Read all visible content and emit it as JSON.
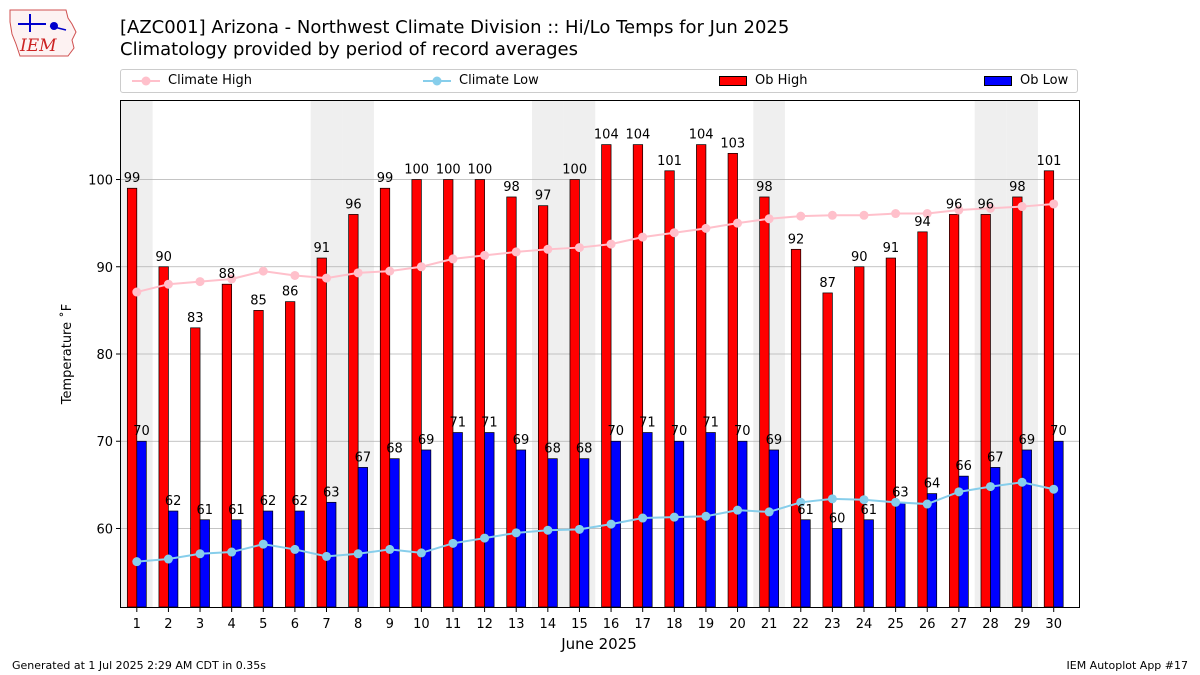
{
  "logo_text": "IEM",
  "title_line1": "[AZC001] Arizona - Northwest Climate Division :: Hi/Lo Temps for Jun 2025",
  "title_line2": "Climatology provided by period of record averages",
  "footer_left": "Generated at 1 Jul 2025 2:29 AM CDT in 0.35s",
  "footer_right": "IEM Autoplot App #17",
  "colors": {
    "ob_high": "#ff0000",
    "ob_low": "#0000ff",
    "climate_high": "#ffc0cb",
    "climate_low": "#87ceeb",
    "weekend_band": "#efefef",
    "grid": "#b0b0b0"
  },
  "chart_data": {
    "type": "bar",
    "xlabel": "June 2025",
    "ylabel": "Temperature ˚F",
    "ylim": [
      51,
      109
    ],
    "yticks": [
      60,
      70,
      80,
      90,
      100
    ],
    "grid": "horizontal",
    "legend_position": "top",
    "categories": [
      "1",
      "2",
      "3",
      "4",
      "5",
      "6",
      "7",
      "8",
      "9",
      "10",
      "11",
      "12",
      "13",
      "14",
      "15",
      "16",
      "17",
      "18",
      "19",
      "20",
      "21",
      "22",
      "23",
      "24",
      "25",
      "26",
      "27",
      "28",
      "29",
      "30"
    ],
    "weekend_days": [
      1,
      7,
      8,
      14,
      15,
      21,
      28,
      29
    ],
    "series": [
      {
        "name": "Climate High",
        "kind": "line",
        "values": [
          87.1,
          88.0,
          88.3,
          88.6,
          89.5,
          89.0,
          88.7,
          89.3,
          89.5,
          90.0,
          90.9,
          91.3,
          91.7,
          92.0,
          92.2,
          92.6,
          93.4,
          93.9,
          94.4,
          95.0,
          95.5,
          95.8,
          95.9,
          95.9,
          96.1,
          96.1,
          96.5,
          96.7,
          96.9,
          97.2
        ]
      },
      {
        "name": "Climate Low",
        "kind": "line",
        "values": [
          56.2,
          56.5,
          57.1,
          57.3,
          58.2,
          57.6,
          56.8,
          57.1,
          57.6,
          57.2,
          58.3,
          58.9,
          59.5,
          59.8,
          59.9,
          60.5,
          61.2,
          61.3,
          61.4,
          62.1,
          61.9,
          63.0,
          63.4,
          63.3,
          63.0,
          62.8,
          64.2,
          64.8,
          65.3,
          64.5
        ]
      },
      {
        "name": "Ob High",
        "kind": "bar",
        "values": [
          99,
          90,
          83,
          88,
          85,
          86,
          91,
          96,
          99,
          100,
          100,
          100,
          98,
          97,
          100,
          104,
          104,
          101,
          104,
          103,
          98,
          92,
          87,
          90,
          91,
          94,
          96,
          96,
          98,
          101
        ]
      },
      {
        "name": "Ob Low",
        "kind": "bar",
        "values": [
          70,
          62,
          61,
          61,
          62,
          62,
          63,
          67,
          68,
          69,
          71,
          71,
          69,
          68,
          68,
          70,
          71,
          70,
          71,
          70,
          69,
          61,
          60,
          61,
          63,
          64,
          66,
          67,
          69,
          70
        ]
      }
    ]
  }
}
